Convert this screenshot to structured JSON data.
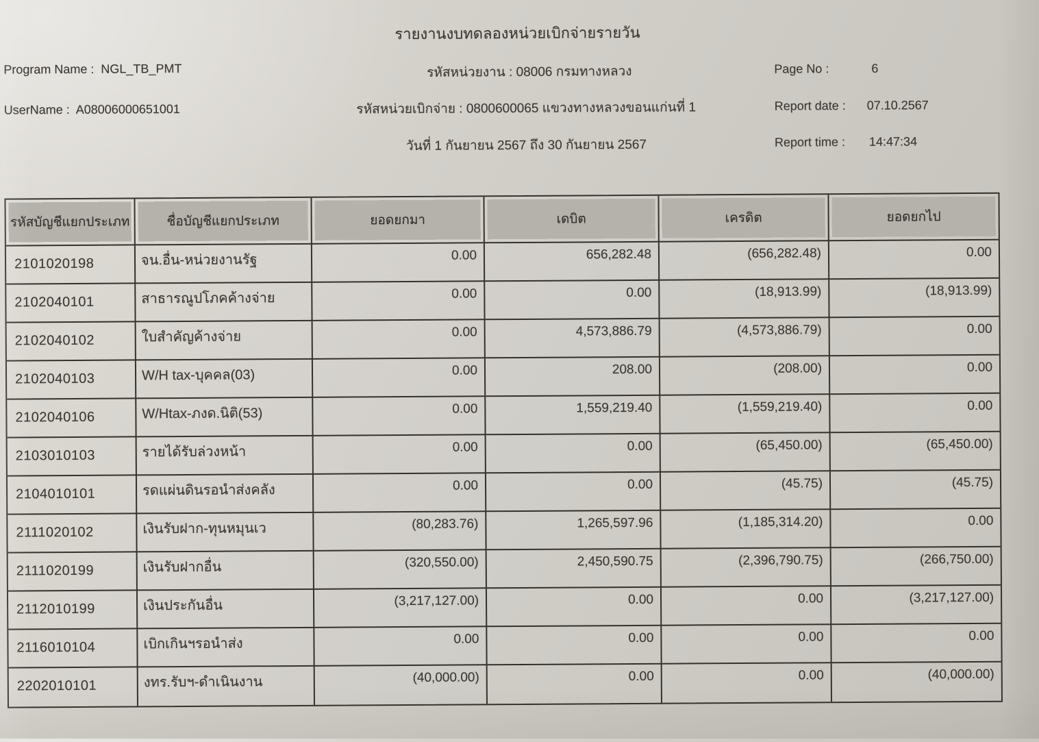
{
  "report": {
    "title": "รายงานงบทดลองหน่วยเบิกจ่ายรายวัน",
    "program_name_label": "Program Name :",
    "program_name": "NGL_TB_PMT",
    "username_label": "UserName :",
    "username": "A08006000651001",
    "agency_line": "รหัสหน่วยงาน : 08006 กรมทางหลวง",
    "disbursement_unit_line": "รหัสหน่วยเบิกจ่าย : 0800600065 แขวงทางหลวงขอนแก่นที่ 1",
    "date_range_line": "วันที่ 1 กันยายน 2567 ถึง 30 กันยายน 2567",
    "page_no_label": "Page No :",
    "page_no": "6",
    "report_date_label": "Report date :",
    "report_date": "07.10.2567",
    "report_time_label": "Report time :",
    "report_time": "14:47:34"
  },
  "table": {
    "columns": [
      "รหัสบัญชีแยกประเภท",
      "ชื่อบัญชีแยกประเภท",
      "ยอดยกมา",
      "เดบิต",
      "เครดิต",
      "ยอดยกไป"
    ],
    "column_keys": [
      "code",
      "name",
      "broughtForward",
      "debit",
      "credit",
      "carriedForward"
    ],
    "rows": [
      {
        "code": "2101020198",
        "name": "จน.อื่น-หน่วยงานรัฐ",
        "broughtForward": "0.00",
        "debit": "656,282.48",
        "credit": "(656,282.48)",
        "carriedForward": "0.00"
      },
      {
        "code": "2102040101",
        "name": "สาธารณูปโภคค้างจ่าย",
        "broughtForward": "0.00",
        "debit": "0.00",
        "credit": "(18,913.99)",
        "carriedForward": "(18,913.99)"
      },
      {
        "code": "2102040102",
        "name": "ใบสำคัญค้างจ่าย",
        "broughtForward": "0.00",
        "debit": "4,573,886.79",
        "credit": "(4,573,886.79)",
        "carriedForward": "0.00"
      },
      {
        "code": "2102040103",
        "name": "W/H tax-บุคคล(03)",
        "broughtForward": "0.00",
        "debit": "208.00",
        "credit": "(208.00)",
        "carriedForward": "0.00"
      },
      {
        "code": "2102040106",
        "name": "W/Htax-ภงด.นิติ(53)",
        "broughtForward": "0.00",
        "debit": "1,559,219.40",
        "credit": "(1,559,219.40)",
        "carriedForward": "0.00"
      },
      {
        "code": "2103010103",
        "name": "รายได้รับล่วงหน้า",
        "broughtForward": "0.00",
        "debit": "0.00",
        "credit": "(65,450.00)",
        "carriedForward": "(65,450.00)"
      },
      {
        "code": "2104010101",
        "name": "รดแผ่นดินรอนำส่งคลัง",
        "broughtForward": "0.00",
        "debit": "0.00",
        "credit": "(45.75)",
        "carriedForward": "(45.75)"
      },
      {
        "code": "2111020102",
        "name": "เงินรับฝาก-ทุนหมุนเว",
        "broughtForward": "(80,283.76)",
        "debit": "1,265,597.96",
        "credit": "(1,185,314.20)",
        "carriedForward": "0.00"
      },
      {
        "code": "2111020199",
        "name": "เงินรับฝากอื่น",
        "broughtForward": "(320,550.00)",
        "debit": "2,450,590.75",
        "credit": "(2,396,790.75)",
        "carriedForward": "(266,750.00)"
      },
      {
        "code": "2112010199",
        "name": "เงินประกันอื่น",
        "broughtForward": "(3,217,127.00)",
        "debit": "0.00",
        "credit": "0.00",
        "carriedForward": "(3,217,127.00)"
      },
      {
        "code": "2116010104",
        "name": "เบิกเกินฯรอนำส่ง",
        "broughtForward": "0.00",
        "debit": "0.00",
        "credit": "0.00",
        "carriedForward": "0.00"
      },
      {
        "code": "2202010101",
        "name": "งทร.รับฯ-ดำเนินงาน",
        "broughtForward": "(40,000.00)",
        "debit": "0.00",
        "credit": "0.00",
        "carriedForward": "(40,000.00)"
      }
    ]
  }
}
